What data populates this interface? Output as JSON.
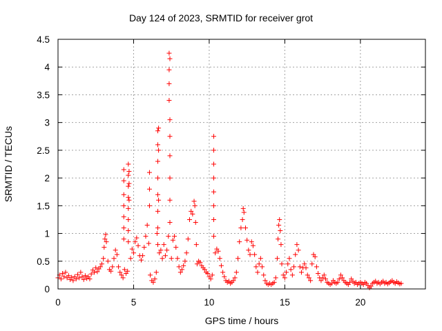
{
  "chart_data": {
    "type": "scatter",
    "title": "Day 124 of 2023, SRMTID for receiver grot",
    "xlabel": "GPS time / hours",
    "ylabel": "SRMTID / TECUs",
    "xlim": [
      0,
      24.3
    ],
    "ylim": [
      0,
      4.5
    ],
    "xticks": [
      0,
      5,
      10,
      15,
      20
    ],
    "yticks": [
      0,
      0.5,
      1,
      1.5,
      2,
      2.5,
      3,
      3.5,
      4,
      4.5
    ],
    "ytick_labels": [
      "0",
      "0.5",
      "1",
      "1.5",
      "2",
      "2.5",
      "3",
      "3.5",
      "4",
      "4.5"
    ],
    "grid": true,
    "marker": "+",
    "color": "#ff0000",
    "series": [
      {
        "name": "SRMTID",
        "points": [
          [
            0.0,
            0.2
          ],
          [
            0.1,
            0.25
          ],
          [
            0.2,
            0.18
          ],
          [
            0.3,
            0.28
          ],
          [
            0.4,
            0.22
          ],
          [
            0.5,
            0.3
          ],
          [
            0.6,
            0.2
          ],
          [
            0.7,
            0.24
          ],
          [
            0.8,
            0.17
          ],
          [
            0.9,
            0.21
          ],
          [
            1.0,
            0.15
          ],
          [
            1.1,
            0.22
          ],
          [
            1.2,
            0.18
          ],
          [
            1.3,
            0.26
          ],
          [
            1.4,
            0.2
          ],
          [
            1.5,
            0.3
          ],
          [
            1.6,
            0.22
          ],
          [
            1.7,
            0.17
          ],
          [
            1.8,
            0.24
          ],
          [
            1.9,
            0.19
          ],
          [
            2.0,
            0.22
          ],
          [
            2.1,
            0.18
          ],
          [
            2.2,
            0.27
          ],
          [
            2.3,
            0.34
          ],
          [
            2.4,
            0.3
          ],
          [
            2.5,
            0.38
          ],
          [
            2.6,
            0.31
          ],
          [
            2.7,
            0.36
          ],
          [
            2.8,
            0.4
          ],
          [
            2.9,
            0.45
          ],
          [
            3.0,
            0.55
          ],
          [
            3.05,
            0.75
          ],
          [
            3.1,
            0.9
          ],
          [
            3.15,
            0.98
          ],
          [
            3.2,
            0.85
          ],
          [
            3.3,
            0.5
          ],
          [
            3.4,
            0.35
          ],
          [
            3.5,
            0.32
          ],
          [
            3.6,
            0.4
          ],
          [
            3.7,
            0.55
          ],
          [
            3.8,
            0.7
          ],
          [
            3.9,
            0.62
          ],
          [
            4.0,
            0.4
          ],
          [
            4.1,
            0.3
          ],
          [
            4.2,
            0.25
          ],
          [
            4.3,
            0.2
          ],
          [
            4.35,
            2.15
          ],
          [
            4.35,
            1.95
          ],
          [
            4.35,
            1.7
          ],
          [
            4.35,
            1.5
          ],
          [
            4.35,
            1.3
          ],
          [
            4.35,
            1.1
          ],
          [
            4.35,
            0.9
          ],
          [
            4.4,
            0.35
          ],
          [
            4.5,
            0.28
          ],
          [
            4.6,
            0.32
          ],
          [
            4.65,
            2.25
          ],
          [
            4.65,
            2.05
          ],
          [
            4.65,
            1.85
          ],
          [
            4.65,
            1.65
          ],
          [
            4.65,
            1.45
          ],
          [
            4.65,
            1.25
          ],
          [
            4.65,
            1.05
          ],
          [
            4.65,
            0.85
          ],
          [
            4.7,
            2.12
          ],
          [
            4.7,
            1.9
          ],
          [
            4.7,
            1.6
          ],
          [
            4.8,
            0.55
          ],
          [
            4.9,
            0.72
          ],
          [
            5.0,
            0.65
          ],
          [
            5.1,
            0.85
          ],
          [
            5.2,
            0.92
          ],
          [
            5.3,
            0.78
          ],
          [
            5.4,
            0.6
          ],
          [
            5.5,
            0.52
          ],
          [
            5.6,
            0.6
          ],
          [
            5.7,
            0.75
          ],
          [
            5.8,
            0.95
          ],
          [
            5.9,
            1.15
          ],
          [
            6.0,
            0.82
          ],
          [
            6.05,
            2.1
          ],
          [
            6.05,
            1.8
          ],
          [
            6.05,
            1.5
          ],
          [
            6.1,
            0.25
          ],
          [
            6.2,
            0.15
          ],
          [
            6.3,
            0.12
          ],
          [
            6.4,
            0.18
          ],
          [
            6.5,
            0.3
          ],
          [
            6.55,
            1.0
          ],
          [
            6.6,
            2.85
          ],
          [
            6.6,
            2.6
          ],
          [
            6.6,
            2.3
          ],
          [
            6.6,
            2.0
          ],
          [
            6.6,
            1.7
          ],
          [
            6.6,
            1.4
          ],
          [
            6.6,
            1.1
          ],
          [
            6.6,
            0.8
          ],
          [
            6.65,
            2.9
          ],
          [
            6.65,
            2.5
          ],
          [
            6.65,
            1.6
          ],
          [
            6.7,
            0.65
          ],
          [
            6.8,
            0.7
          ],
          [
            6.9,
            0.55
          ],
          [
            7.0,
            0.8
          ],
          [
            7.1,
            0.6
          ],
          [
            7.2,
            0.7
          ],
          [
            7.3,
            0.95
          ],
          [
            7.35,
            4.25
          ],
          [
            7.35,
            3.95
          ],
          [
            7.35,
            3.7
          ],
          [
            7.35,
            3.4
          ],
          [
            7.4,
            4.15
          ],
          [
            7.4,
            3.05
          ],
          [
            7.4,
            2.75
          ],
          [
            7.4,
            2.4
          ],
          [
            7.4,
            2.0
          ],
          [
            7.4,
            1.6
          ],
          [
            7.4,
            1.2
          ],
          [
            7.5,
            0.55
          ],
          [
            7.6,
            0.88
          ],
          [
            7.7,
            0.95
          ],
          [
            7.8,
            0.75
          ],
          [
            7.9,
            0.55
          ],
          [
            8.0,
            0.4
          ],
          [
            8.1,
            0.3
          ],
          [
            8.2,
            0.35
          ],
          [
            8.3,
            0.42
          ],
          [
            8.4,
            0.5
          ],
          [
            8.5,
            0.65
          ],
          [
            8.6,
            0.9
          ],
          [
            8.7,
            1.25
          ],
          [
            8.8,
            1.4
          ],
          [
            8.9,
            1.35
          ],
          [
            9.0,
            1.58
          ],
          [
            9.05,
            1.5
          ],
          [
            9.1,
            1.2
          ],
          [
            9.15,
            0.8
          ],
          [
            9.2,
            0.45
          ],
          [
            9.3,
            0.5
          ],
          [
            9.4,
            0.48
          ],
          [
            9.5,
            0.42
          ],
          [
            9.6,
            0.38
          ],
          [
            9.7,
            0.35
          ],
          [
            9.8,
            0.3
          ],
          [
            9.9,
            0.28
          ],
          [
            10.0,
            0.22
          ],
          [
            10.1,
            0.18
          ],
          [
            10.2,
            0.25
          ],
          [
            10.3,
            2.75
          ],
          [
            10.3,
            2.5
          ],
          [
            10.3,
            2.25
          ],
          [
            10.3,
            2.0
          ],
          [
            10.3,
            1.75
          ],
          [
            10.3,
            1.5
          ],
          [
            10.3,
            1.25
          ],
          [
            10.3,
            0.95
          ],
          [
            10.4,
            0.65
          ],
          [
            10.5,
            0.72
          ],
          [
            10.6,
            0.68
          ],
          [
            10.7,
            0.55
          ],
          [
            10.8,
            0.42
          ],
          [
            10.9,
            0.3
          ],
          [
            11.0,
            0.22
          ],
          [
            11.1,
            0.15
          ],
          [
            11.2,
            0.12
          ],
          [
            11.3,
            0.14
          ],
          [
            11.4,
            0.1
          ],
          [
            11.5,
            0.12
          ],
          [
            11.6,
            0.15
          ],
          [
            11.7,
            0.2
          ],
          [
            11.8,
            0.3
          ],
          [
            11.9,
            0.55
          ],
          [
            12.0,
            0.85
          ],
          [
            12.1,
            1.1
          ],
          [
            12.2,
            1.25
          ],
          [
            12.25,
            1.45
          ],
          [
            12.3,
            1.38
          ],
          [
            12.4,
            1.1
          ],
          [
            12.5,
            0.88
          ],
          [
            12.6,
            0.7
          ],
          [
            12.7,
            0.62
          ],
          [
            12.8,
            0.85
          ],
          [
            12.9,
            0.78
          ],
          [
            13.0,
            0.62
          ],
          [
            13.1,
            0.4
          ],
          [
            13.2,
            0.3
          ],
          [
            13.3,
            0.45
          ],
          [
            13.4,
            0.55
          ],
          [
            13.5,
            0.4
          ],
          [
            13.6,
            0.25
          ],
          [
            13.7,
            0.15
          ],
          [
            13.8,
            0.1
          ],
          [
            13.9,
            0.08
          ],
          [
            14.0,
            0.1
          ],
          [
            14.1,
            0.08
          ],
          [
            14.2,
            0.1
          ],
          [
            14.3,
            0.12
          ],
          [
            14.4,
            0.2
          ],
          [
            14.5,
            0.55
          ],
          [
            14.55,
            0.9
          ],
          [
            14.6,
            1.15
          ],
          [
            14.65,
            1.25
          ],
          [
            14.7,
            1.05
          ],
          [
            14.75,
            0.8
          ],
          [
            14.8,
            0.45
          ],
          [
            14.9,
            0.25
          ],
          [
            15.0,
            0.2
          ],
          [
            15.1,
            0.3
          ],
          [
            15.2,
            0.45
          ],
          [
            15.3,
            0.55
          ],
          [
            15.4,
            0.35
          ],
          [
            15.5,
            0.25
          ],
          [
            15.6,
            0.4
          ],
          [
            15.7,
            0.62
          ],
          [
            15.8,
            0.8
          ],
          [
            15.9,
            0.7
          ],
          [
            16.0,
            0.4
          ],
          [
            16.1,
            0.3
          ],
          [
            16.2,
            0.38
          ],
          [
            16.3,
            0.45
          ],
          [
            16.4,
            0.38
          ],
          [
            16.5,
            0.25
          ],
          [
            16.6,
            0.2
          ],
          [
            16.7,
            0.15
          ],
          [
            16.8,
            0.45
          ],
          [
            16.9,
            0.62
          ],
          [
            17.0,
            0.58
          ],
          [
            17.1,
            0.4
          ],
          [
            17.2,
            0.28
          ],
          [
            17.3,
            0.2
          ],
          [
            17.4,
            0.15
          ],
          [
            17.5,
            0.2
          ],
          [
            17.6,
            0.25
          ],
          [
            17.7,
            0.18
          ],
          [
            17.8,
            0.12
          ],
          [
            17.9,
            0.1
          ],
          [
            18.0,
            0.08
          ],
          [
            18.1,
            0.1
          ],
          [
            18.2,
            0.15
          ],
          [
            18.3,
            0.12
          ],
          [
            18.4,
            0.1
          ],
          [
            18.5,
            0.12
          ],
          [
            18.6,
            0.18
          ],
          [
            18.7,
            0.25
          ],
          [
            18.8,
            0.2
          ],
          [
            18.9,
            0.15
          ],
          [
            19.0,
            0.12
          ],
          [
            19.1,
            0.1
          ],
          [
            19.2,
            0.08
          ],
          [
            19.3,
            0.12
          ],
          [
            19.4,
            0.18
          ],
          [
            19.5,
            0.14
          ],
          [
            19.6,
            0.1
          ],
          [
            19.7,
            0.12
          ],
          [
            19.8,
            0.08
          ],
          [
            19.9,
            0.1
          ],
          [
            20.0,
            0.12
          ],
          [
            20.1,
            0.1
          ],
          [
            20.2,
            0.08
          ],
          [
            20.3,
            0.12
          ],
          [
            20.4,
            0.1
          ],
          [
            20.5,
            0.06
          ],
          [
            20.6,
            0.02
          ],
          [
            20.7,
            0.05
          ],
          [
            20.8,
            0.1
          ],
          [
            20.9,
            0.12
          ],
          [
            21.0,
            0.14
          ],
          [
            21.1,
            0.1
          ],
          [
            21.2,
            0.12
          ],
          [
            21.3,
            0.09
          ],
          [
            21.4,
            0.12
          ],
          [
            21.5,
            0.14
          ],
          [
            21.6,
            0.1
          ],
          [
            21.7,
            0.12
          ],
          [
            21.8,
            0.09
          ],
          [
            21.9,
            0.11
          ],
          [
            22.0,
            0.13
          ],
          [
            22.1,
            0.15
          ],
          [
            22.2,
            0.12
          ],
          [
            22.3,
            0.1
          ],
          [
            22.4,
            0.13
          ],
          [
            22.5,
            0.11
          ],
          [
            22.6,
            0.09
          ],
          [
            22.7,
            0.1
          ]
        ]
      }
    ]
  }
}
